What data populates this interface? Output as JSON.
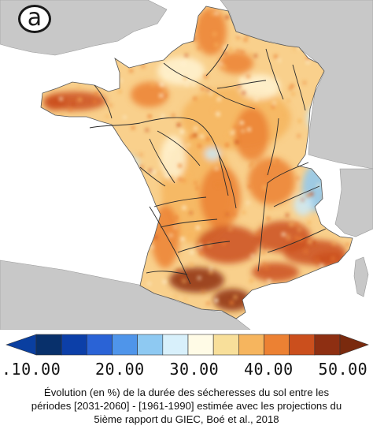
{
  "panel_label": "a",
  "colorbar": {
    "colors": [
      "#08306b",
      "#0c3fa8",
      "#2a63d6",
      "#4f95ea",
      "#8ec9f2",
      "#d8f0fb",
      "#fffbe6",
      "#f8df9a",
      "#f6b55e",
      "#ec8133",
      "#cb4f1d",
      "#8e2f12"
    ],
    "end_left_color": "#0a3fa0",
    "end_right_color": "#7a2a0e",
    "ticks": [
      {
        "label": ".10.00",
        "value": 10
      },
      {
        "label": "20.00",
        "value": 20
      },
      {
        "label": "30.00",
        "value": 30
      },
      {
        "label": "40.00",
        "value": 40
      },
      {
        "label": "50.00",
        "value": 50
      }
    ]
  },
  "map_colors": {
    "sea": "#ffffff",
    "land_outside": "#c8c8c8",
    "france_base": "#f9d08c",
    "hot_dark": "#8e2f12",
    "hot": "#cb4f1d",
    "warm": "#ec8133",
    "mild": "#f6b55e",
    "pale": "#fff3d2",
    "cool": "#cdeaf7",
    "cold": "#8ec9f2",
    "rivers": "#2b2b2b"
  },
  "caption": {
    "line1": "Évolution (en %) de la durée des sécheresses du sol entre les",
    "line2": "périodes [2031-2060] - [1961-1990] estimée avec les projections du",
    "line3": "5ième rapport du GIEC, Boé et al., 2018"
  }
}
